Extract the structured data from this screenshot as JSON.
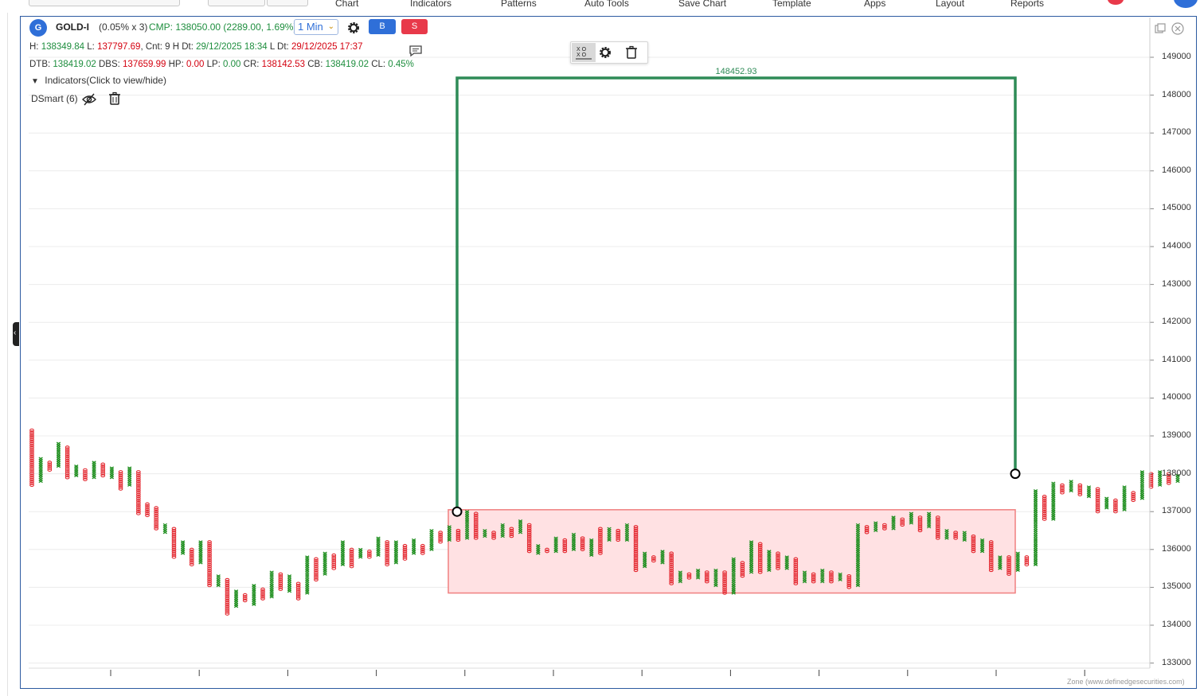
{
  "menu": {
    "items": [
      "Chart",
      "Indicators",
      "Patterns",
      "Auto Tools",
      "Save Chart",
      "Template",
      "Apps",
      "Layout",
      "Reports"
    ]
  },
  "symbol": {
    "badge": "G",
    "name": "GOLD-I",
    "box_info": "(0.05% x 3)",
    "cmp": "CMP: 138050.00 (2289.00, 1.69%)",
    "timeframe": "1 Min",
    "buy_label": "B",
    "sell_label": "S"
  },
  "stats1": {
    "h_label": "H:",
    "h_value": "138349.84",
    "l_label": "L:",
    "l_value": "137797.69",
    "cnt": ", Cnt: 9",
    "hdt_label": "H Dt:",
    "hdt_value": "29/12/2025 18:34",
    "ldt_label": "L Dt:",
    "ldt_value": "29/12/2025 17:37"
  },
  "stats2": {
    "dtb_label": "DTB:",
    "dtb_value": "138419.02",
    "dbs_label": "DBS:",
    "dbs_value": "137659.99",
    "hp_label": "HP:",
    "hp_value": "0.00",
    "lp_label": "LP:",
    "lp_value": "0.00",
    "cr_label": "CR:",
    "cr_value": "138142.53",
    "cb_label": "CB:",
    "cb_value": "138419.02",
    "cl_label": "CL:",
    "cl_value": "0.45%"
  },
  "indicators": {
    "toggle_label": "Indicators(Click to view/hide)",
    "items": [
      {
        "label": "DSmart (6)"
      }
    ]
  },
  "drawing": {
    "target_label": "148452.93"
  },
  "price_axis": [
    "149000",
    "148000",
    "147000",
    "146000",
    "145000",
    "144000",
    "143000",
    "142000",
    "141000",
    "140000",
    "139000",
    "138000",
    "137000",
    "136000",
    "135000",
    "134000",
    "133000"
  ],
  "footer": "Zone (www.definedgesecurities.com)",
  "colors": {
    "x_column": "#1e8e1e",
    "o_column": "#e3232b",
    "target_line": "#2e8b57",
    "zone_fill": "#ffe1e3",
    "zone_border": "#f08080",
    "accent": "#2f6fd8"
  },
  "chart_data": {
    "type": "point-and-figure",
    "box_size_percent": 0.05,
    "reversal": 3,
    "y_range": [
      133000,
      149000
    ],
    "columns": [
      {
        "t": "O",
        "hi": 139150,
        "lo": 137700
      },
      {
        "t": "X",
        "hi": 138400,
        "lo": 137800
      },
      {
        "t": "O",
        "hi": 138300,
        "lo": 138100
      },
      {
        "t": "X",
        "hi": 138800,
        "lo": 138200
      },
      {
        "t": "O",
        "hi": 138700,
        "lo": 137900
      },
      {
        "t": "X",
        "hi": 138200,
        "lo": 137950
      },
      {
        "t": "O",
        "hi": 138100,
        "lo": 137850
      },
      {
        "t": "X",
        "hi": 138300,
        "lo": 137900
      },
      {
        "t": "O",
        "hi": 138250,
        "lo": 137950
      },
      {
        "t": "X",
        "hi": 138150,
        "lo": 137900
      },
      {
        "t": "O",
        "hi": 138050,
        "lo": 137600
      },
      {
        "t": "X",
        "hi": 138150,
        "lo": 137700
      },
      {
        "t": "O",
        "hi": 138050,
        "lo": 136950
      },
      {
        "t": "O",
        "hi": 137200,
        "lo": 136900
      },
      {
        "t": "O",
        "hi": 137100,
        "lo": 136550
      },
      {
        "t": "X",
        "hi": 136650,
        "lo": 136450
      },
      {
        "t": "O",
        "hi": 136550,
        "lo": 135800
      },
      {
        "t": "X",
        "hi": 136200,
        "lo": 135900
      },
      {
        "t": "O",
        "hi": 136000,
        "lo": 135600
      },
      {
        "t": "X",
        "hi": 136200,
        "lo": 135650
      },
      {
        "t": "O",
        "hi": 136200,
        "lo": 135050
      },
      {
        "t": "X",
        "hi": 135300,
        "lo": 135050
      },
      {
        "t": "O",
        "hi": 135200,
        "lo": 134300
      },
      {
        "t": "X",
        "hi": 134900,
        "lo": 134500
      },
      {
        "t": "O",
        "hi": 134800,
        "lo": 134650
      },
      {
        "t": "X",
        "hi": 135050,
        "lo": 134550
      },
      {
        "t": "O",
        "hi": 134950,
        "lo": 134700
      },
      {
        "t": "X",
        "hi": 135400,
        "lo": 134750
      },
      {
        "t": "O",
        "hi": 135350,
        "lo": 134950
      },
      {
        "t": "X",
        "hi": 135300,
        "lo": 134900
      },
      {
        "t": "O",
        "hi": 135100,
        "lo": 134700
      },
      {
        "t": "X",
        "hi": 135800,
        "lo": 134850
      },
      {
        "t": "O",
        "hi": 135750,
        "lo": 135200
      },
      {
        "t": "X",
        "hi": 135900,
        "lo": 135350
      },
      {
        "t": "O",
        "hi": 135850,
        "lo": 135500
      },
      {
        "t": "X",
        "hi": 136200,
        "lo": 135600
      },
      {
        "t": "O",
        "hi": 136000,
        "lo": 135550
      },
      {
        "t": "X",
        "hi": 136000,
        "lo": 135800
      },
      {
        "t": "O",
        "hi": 135950,
        "lo": 135800
      },
      {
        "t": "X",
        "hi": 136300,
        "lo": 135850
      },
      {
        "t": "O",
        "hi": 136200,
        "lo": 135600
      },
      {
        "t": "X",
        "hi": 136200,
        "lo": 135650
      },
      {
        "t": "O",
        "hi": 136100,
        "lo": 135750
      },
      {
        "t": "X",
        "hi": 136250,
        "lo": 135900
      },
      {
        "t": "O",
        "hi": 136100,
        "lo": 135900
      },
      {
        "t": "X",
        "hi": 136500,
        "lo": 136000
      },
      {
        "t": "O",
        "hi": 136450,
        "lo": 136200
      },
      {
        "t": "X",
        "hi": 136600,
        "lo": 136250
      },
      {
        "t": "O",
        "hi": 136500,
        "lo": 136250
      },
      {
        "t": "X",
        "hi": 137000,
        "lo": 136300
      },
      {
        "t": "O",
        "hi": 136950,
        "lo": 136300
      },
      {
        "t": "X",
        "hi": 136500,
        "lo": 136350
      },
      {
        "t": "O",
        "hi": 136450,
        "lo": 136300
      },
      {
        "t": "X",
        "hi": 136650,
        "lo": 136350
      },
      {
        "t": "O",
        "hi": 136550,
        "lo": 136350
      },
      {
        "t": "X",
        "hi": 136750,
        "lo": 136450
      },
      {
        "t": "O",
        "hi": 136650,
        "lo": 135950
      },
      {
        "t": "X",
        "hi": 136100,
        "lo": 135900
      },
      {
        "t": "O",
        "hi": 136000,
        "lo": 135950
      },
      {
        "t": "X",
        "hi": 136300,
        "lo": 135950
      },
      {
        "t": "O",
        "hi": 136250,
        "lo": 135950
      },
      {
        "t": "X",
        "hi": 136400,
        "lo": 136000
      },
      {
        "t": "O",
        "hi": 136300,
        "lo": 136000
      },
      {
        "t": "X",
        "hi": 136250,
        "lo": 135850
      },
      {
        "t": "O",
        "hi": 136550,
        "lo": 135900
      },
      {
        "t": "X",
        "hi": 136550,
        "lo": 136250
      },
      {
        "t": "O",
        "hi": 136500,
        "lo": 136250
      },
      {
        "t": "X",
        "hi": 136650,
        "lo": 136250
      },
      {
        "t": "O",
        "hi": 136600,
        "lo": 135450
      },
      {
        "t": "X",
        "hi": 135900,
        "lo": 135550
      },
      {
        "t": "O",
        "hi": 135800,
        "lo": 135700
      },
      {
        "t": "X",
        "hi": 135950,
        "lo": 135650
      },
      {
        "t": "O",
        "hi": 135900,
        "lo": 135100
      },
      {
        "t": "X",
        "hi": 135400,
        "lo": 135150
      },
      {
        "t": "O",
        "hi": 135350,
        "lo": 135250
      },
      {
        "t": "X",
        "hi": 135450,
        "lo": 135250
      },
      {
        "t": "O",
        "hi": 135400,
        "lo": 135150
      },
      {
        "t": "X",
        "hi": 135450,
        "lo": 135050
      },
      {
        "t": "O",
        "hi": 135400,
        "lo": 134850
      },
      {
        "t": "X",
        "hi": 135750,
        "lo": 134850
      },
      {
        "t": "O",
        "hi": 135650,
        "lo": 135300
      },
      {
        "t": "X",
        "hi": 136200,
        "lo": 135400
      },
      {
        "t": "O",
        "hi": 136150,
        "lo": 135400
      },
      {
        "t": "X",
        "hi": 135950,
        "lo": 135450
      },
      {
        "t": "O",
        "hi": 135900,
        "lo": 135500
      },
      {
        "t": "X",
        "hi": 135800,
        "lo": 135500
      },
      {
        "t": "O",
        "hi": 135750,
        "lo": 135100
      },
      {
        "t": "X",
        "hi": 135400,
        "lo": 135150
      },
      {
        "t": "O",
        "hi": 135350,
        "lo": 135150
      },
      {
        "t": "X",
        "hi": 135450,
        "lo": 135150
      },
      {
        "t": "O",
        "hi": 135400,
        "lo": 135150
      },
      {
        "t": "X",
        "hi": 135350,
        "lo": 135200
      },
      {
        "t": "O",
        "hi": 135300,
        "lo": 135000
      },
      {
        "t": "X",
        "hi": 136650,
        "lo": 135050
      },
      {
        "t": "O",
        "hi": 136600,
        "lo": 136450
      },
      {
        "t": "X",
        "hi": 136700,
        "lo": 136500
      },
      {
        "t": "O",
        "hi": 136650,
        "lo": 136550
      },
      {
        "t": "X",
        "hi": 136850,
        "lo": 136550
      },
      {
        "t": "O",
        "hi": 136800,
        "lo": 136650
      },
      {
        "t": "X",
        "hi": 136950,
        "lo": 136700
      },
      {
        "t": "O",
        "hi": 136850,
        "lo": 136500
      },
      {
        "t": "X",
        "hi": 136950,
        "lo": 136600
      },
      {
        "t": "O",
        "hi": 136850,
        "lo": 136300
      },
      {
        "t": "X",
        "hi": 136500,
        "lo": 136300
      },
      {
        "t": "O",
        "hi": 136450,
        "lo": 136300
      },
      {
        "t": "X",
        "hi": 136450,
        "lo": 136250
      },
      {
        "t": "O",
        "hi": 136350,
        "lo": 135950
      },
      {
        "t": "X",
        "hi": 136250,
        "lo": 135950
      },
      {
        "t": "O",
        "hi": 136200,
        "lo": 135450
      },
      {
        "t": "X",
        "hi": 135800,
        "lo": 135500
      },
      {
        "t": "O",
        "hi": 135800,
        "lo": 135350
      },
      {
        "t": "X",
        "hi": 135900,
        "lo": 135450
      },
      {
        "t": "O",
        "hi": 135800,
        "lo": 135600
      },
      {
        "t": "X",
        "hi": 137550,
        "lo": 135600
      },
      {
        "t": "O",
        "hi": 137400,
        "lo": 136800
      },
      {
        "t": "X",
        "hi": 137750,
        "lo": 136800
      },
      {
        "t": "O",
        "hi": 137700,
        "lo": 137500
      },
      {
        "t": "X",
        "hi": 137800,
        "lo": 137550
      },
      {
        "t": "O",
        "hi": 137700,
        "lo": 137450
      },
      {
        "t": "X",
        "hi": 137650,
        "lo": 137400
      },
      {
        "t": "O",
        "hi": 137600,
        "lo": 137000
      },
      {
        "t": "X",
        "hi": 137350,
        "lo": 137100
      },
      {
        "t": "O",
        "hi": 137300,
        "lo": 137000
      },
      {
        "t": "X",
        "hi": 137650,
        "lo": 137050
      },
      {
        "t": "O",
        "hi": 137500,
        "lo": 137300
      },
      {
        "t": "X",
        "hi": 138050,
        "lo": 137350
      },
      {
        "t": "O",
        "hi": 138000,
        "lo": 137650
      },
      {
        "t": "X",
        "hi": 138050,
        "lo": 137700
      },
      {
        "t": "O",
        "hi": 138000,
        "lo": 137750
      },
      {
        "t": "X",
        "hi": 137950,
        "lo": 137800
      }
    ],
    "target_line": {
      "from_price": 137000,
      "to_price": 138000,
      "level": 148452.93
    },
    "zone": {
      "top": 137050,
      "bottom": 134850
    }
  }
}
